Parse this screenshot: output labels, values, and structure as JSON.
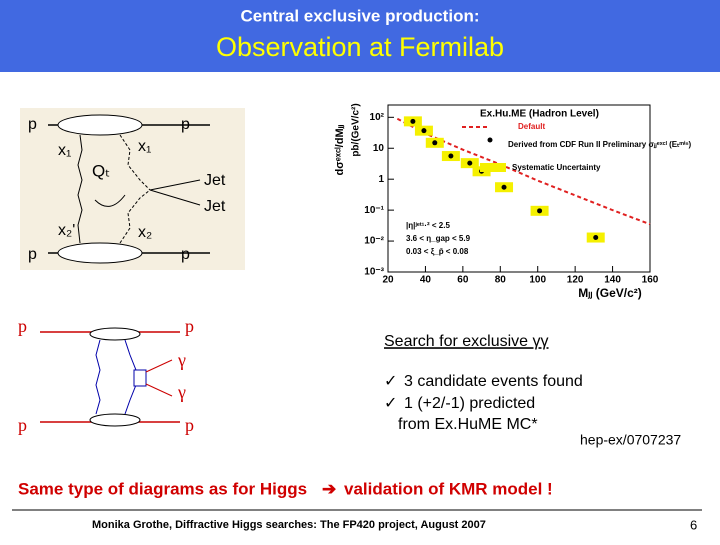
{
  "header": {
    "subtitle": "Central exclusive production:",
    "title": "Observation at Fermilab"
  },
  "diagram_top": {
    "labels": [
      "p",
      "p",
      "x₁",
      "x₁",
      "Qₜ",
      "Jet",
      "Jet",
      "x₂'",
      "x₂",
      "p",
      "p"
    ]
  },
  "diagram_bottom": {
    "labels": [
      "p",
      "p",
      "γ",
      "γ",
      "p",
      "p"
    ]
  },
  "chart_data": {
    "type": "scatter",
    "title": "Ex.Hu.ME (Hadron Level)",
    "x_label": "Mⱼⱼ (GeV/c²)",
    "y_label": "dσᵉˣᶜˡ/dMⱼⱼ",
    "y_unit": "pb/(GeV/c²)",
    "log_y": true,
    "xlim": [
      20,
      160
    ],
    "xticks": [
      20,
      40,
      60,
      80,
      100,
      120,
      140,
      160
    ],
    "ylim": [
      0.001,
      250
    ],
    "yticks": [
      {
        "value": 0.001,
        "label": "10⁻³"
      },
      {
        "value": 0.01,
        "label": "10⁻²"
      },
      {
        "value": 0.1,
        "label": "10⁻¹"
      },
      1,
      10,
      {
        "value": 100,
        "label": "10²"
      }
    ],
    "series": [
      {
        "name": "Default",
        "color": "#e02020",
        "style": "dashed-line",
        "x": [
          25,
          40,
          60,
          80,
          100,
          120,
          140,
          160
        ],
        "values": [
          90,
          30,
          9,
          3,
          0.9,
          0.3,
          0.1,
          0.035
        ]
      },
      {
        "name": "Derived from CDF Run II Preliminary σⱼⱼᵉˣᶜˡ (Eₜᵐⁱⁿ)",
        "color": "#000000",
        "style": "points",
        "x": [
          33.3,
          39.2,
          45,
          53.6,
          63.7,
          70,
          82,
          101,
          131
        ],
        "values": [
          74,
          37,
          15,
          5.6,
          3.3,
          1.8,
          0.55,
          0.095,
          0.013
        ]
      }
    ],
    "band_name": "Systematic Uncertainty",
    "band_color": "#f5f000",
    "cuts": [
      "|η|ʲᵉᵗ¹·² < 2.5",
      "3.6 < η_gap < 5.9",
      "0.03 < ξ_p̄ < 0.08"
    ]
  },
  "body": {
    "search_title": "Search for exclusive γγ",
    "items": [
      "3 candidate events found",
      "1  (+2/-1)  predicted"
    ],
    "item_note": "from  Ex.HuME MC*",
    "reference": "hep-ex/0707237",
    "conclusion_a": "Same type of diagrams as for Higgs",
    "conclusion_b": "validation of KMR model !"
  },
  "footer": {
    "text": "Monika Grothe, Diffractive Higgs searches: The FP420 project, August 2007",
    "page": "6"
  }
}
